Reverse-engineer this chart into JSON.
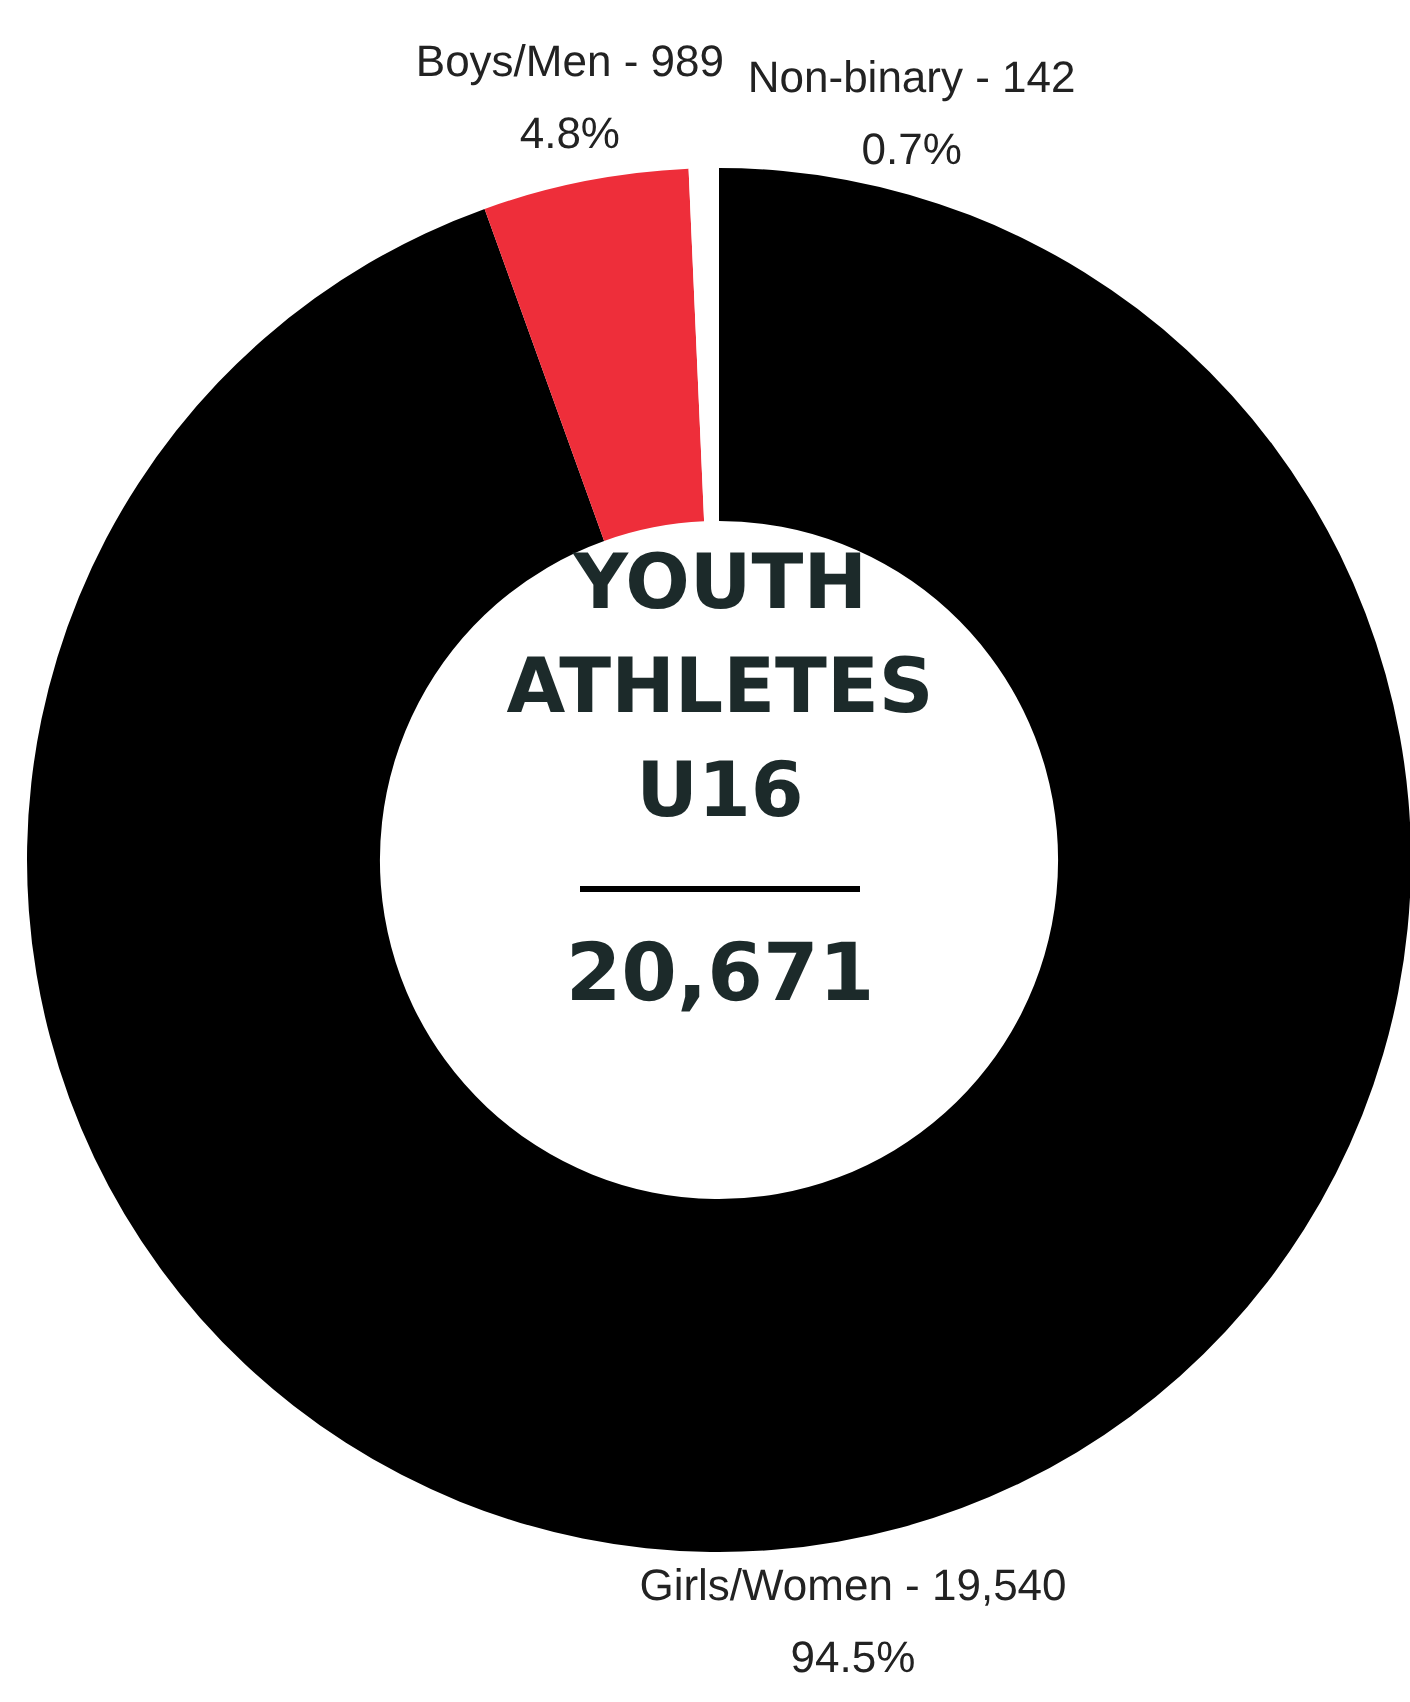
{
  "chart_data": {
    "type": "donut",
    "title": "YOUTH ATHLETES U16",
    "annotations": [
      "20,671"
    ],
    "categories": [
      "Girls/Women - 19,540",
      "Boys/Men - 989",
      "Non-binary - 142"
    ],
    "values": [
      94.5,
      4.8,
      0.7
    ],
    "value_labels": [
      "94.5%",
      "4.8%",
      "0.7%"
    ],
    "colors": [
      "#000000",
      "#ee2e3a",
      "#ffffff"
    ],
    "legend": false
  }
}
